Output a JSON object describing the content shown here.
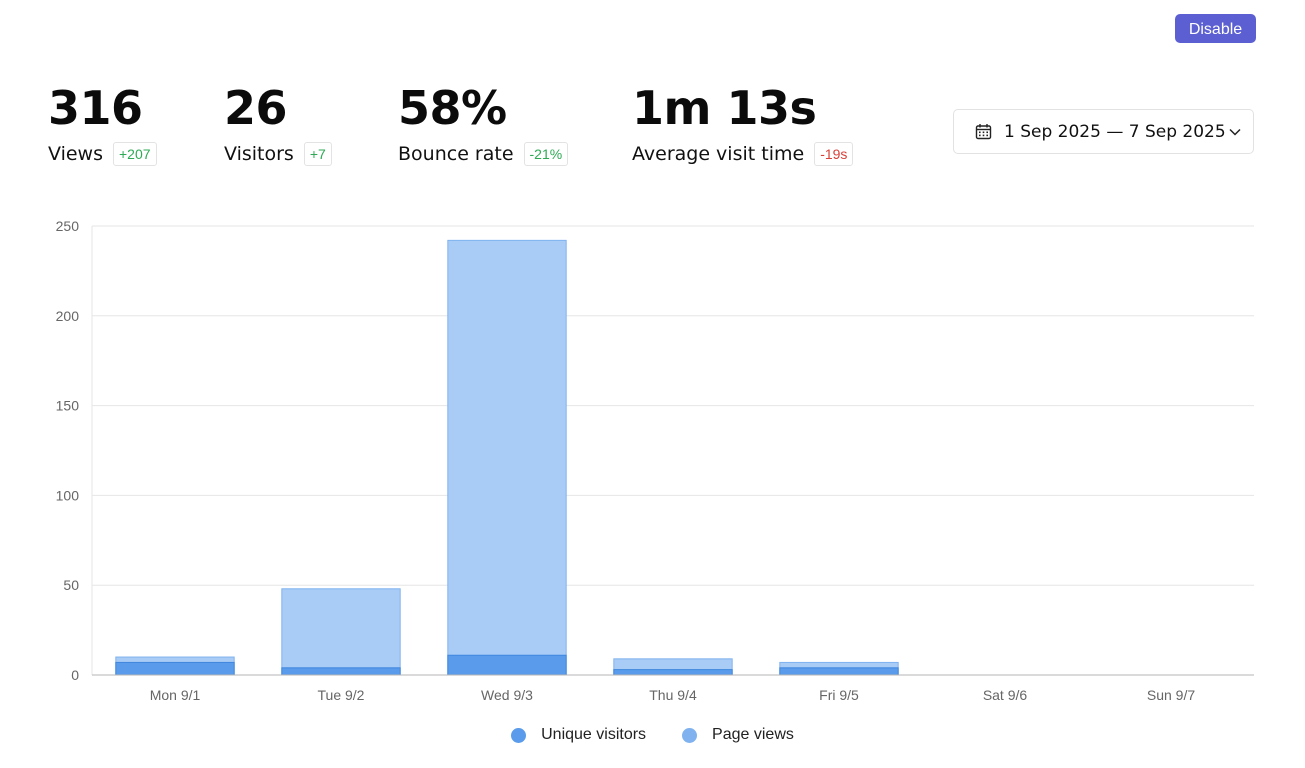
{
  "header": {
    "disable_label": "Disable"
  },
  "metrics": [
    {
      "value": "316",
      "label": "Views",
      "delta": "+207",
      "trend": "up"
    },
    {
      "value": "26",
      "label": "Visitors",
      "delta": "+7",
      "trend": "up"
    },
    {
      "value": "58%",
      "label": "Bounce rate",
      "delta": "-21%",
      "trend": "up"
    },
    {
      "value": "1m 13s",
      "label": "Average visit time",
      "delta": "-19s",
      "trend": "down"
    }
  ],
  "date_range": {
    "label": "1 Sep 2025 — 7 Sep 2025",
    "icon": "calendar-icon",
    "chevron": "chevron-down-icon"
  },
  "colors": {
    "accent": "#5b5fd1",
    "unique_fill": "#5a9ceb",
    "unique_stroke": "#3f86de",
    "pageviews_fill": "#a9ccf6",
    "pageviews_stroke": "#7fb2ef",
    "positive": "#2eaa55",
    "negative": "#d8413a"
  },
  "chart_data": {
    "type": "bar",
    "stacking": "overlaid",
    "categories": [
      "Mon 9/1",
      "Tue 9/2",
      "Wed 9/3",
      "Thu 9/4",
      "Fri 9/5",
      "Sat 9/6",
      "Sun 9/7"
    ],
    "series": [
      {
        "name": "Unique visitors",
        "values": [
          7,
          4,
          11,
          3,
          4,
          0,
          0
        ]
      },
      {
        "name": "Page views",
        "values": [
          10,
          48,
          242,
          9,
          7,
          0,
          0
        ]
      }
    ],
    "ylim": [
      0,
      250
    ],
    "yticks": [
      0,
      50,
      100,
      150,
      200,
      250
    ],
    "grid": true,
    "legend_position": "bottom-center"
  }
}
